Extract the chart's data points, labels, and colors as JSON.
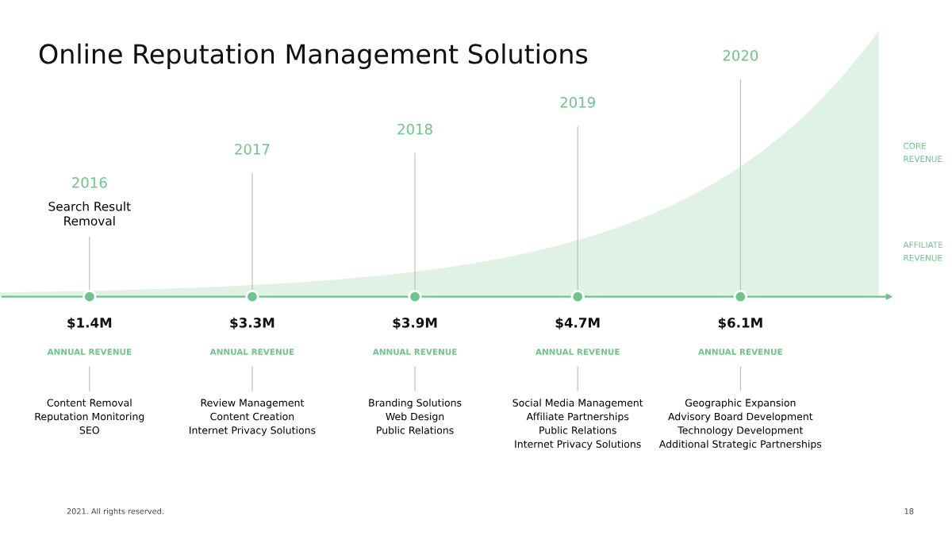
{
  "chart_data": {
    "type": "other",
    "title": "Online Reputation Management Solutions",
    "categories": [
      "2016",
      "2017",
      "2018",
      "2019",
      "2020"
    ],
    "values": [
      1.4,
      3.3,
      3.9,
      4.7,
      6.1
    ],
    "value_labels": [
      "$1.4M",
      "$3.3M",
      "$3.9M",
      "$4.7M",
      "$6.1M"
    ],
    "ylabel": "ANNUAL REVENUE",
    "color": "#6cc58a",
    "annotations": [
      "Search Result\nRemoval",
      "Content Removal\nReputation Monitoring\nSEO",
      "Review Management\nContent Creation\nInternet Privacy Solutions",
      "Branding Solutions\nWeb Design\nPublic Relations",
      "Social Media Management\nAffiliate Partnerships\nPublic Relations\nInternet Privacy Solutions",
      "Geographic Expansion\nAdvisory Board Development\nTechnology Development\nAdditional Strategic Partnerships",
      "CORE\nREVENUE",
      "AFFILIATE\nREVENUE",
      "2021. All rights reserved.",
      "18"
    ]
  }
}
